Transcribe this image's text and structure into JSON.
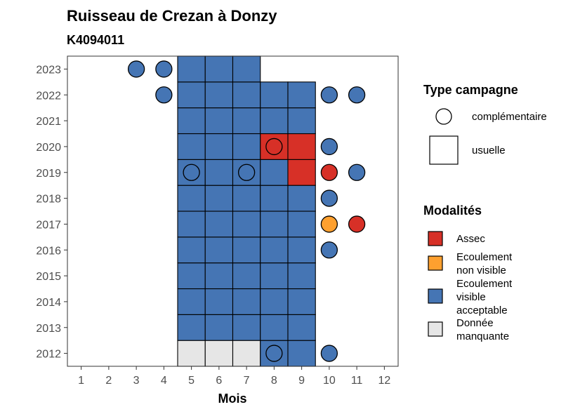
{
  "chart_data": {
    "type": "heatmap",
    "title": "Ruisseau de Crezan à Donzy",
    "subtitle": "K4094011",
    "xlabel": "Mois",
    "ylabel": "",
    "x_ticks": [
      1,
      2,
      3,
      4,
      5,
      6,
      7,
      8,
      9,
      10,
      11,
      12
    ],
    "y_ticks": [
      2012,
      2013,
      2014,
      2015,
      2016,
      2017,
      2018,
      2019,
      2020,
      2021,
      2022,
      2023
    ],
    "xlim": [
      0.5,
      12.5
    ],
    "ylim": [
      2011.5,
      2023.5
    ],
    "grid": false,
    "legend_position": "right",
    "colors": {
      "Assec": "#D73027",
      "Ecoulement non visible": "#FEA02F",
      "Ecoulement visible acceptable": "#4575B4",
      "Donnée manquante": "#E6E6E6"
    },
    "usuelle": [
      {
        "year": 2012,
        "month": 5,
        "modalite": "Donnée manquante"
      },
      {
        "year": 2012,
        "month": 6,
        "modalite": "Donnée manquante"
      },
      {
        "year": 2012,
        "month": 7,
        "modalite": "Donnée manquante"
      },
      {
        "year": 2012,
        "month": 8,
        "modalite": "Ecoulement visible acceptable"
      },
      {
        "year": 2012,
        "month": 9,
        "modalite": "Ecoulement visible acceptable"
      },
      {
        "year": 2013,
        "month": 5,
        "modalite": "Ecoulement visible acceptable"
      },
      {
        "year": 2013,
        "month": 6,
        "modalite": "Ecoulement visible acceptable"
      },
      {
        "year": 2013,
        "month": 7,
        "modalite": "Ecoulement visible acceptable"
      },
      {
        "year": 2013,
        "month": 8,
        "modalite": "Ecoulement visible acceptable"
      },
      {
        "year": 2013,
        "month": 9,
        "modalite": "Ecoulement visible acceptable"
      },
      {
        "year": 2014,
        "month": 5,
        "modalite": "Ecoulement visible acceptable"
      },
      {
        "year": 2014,
        "month": 6,
        "modalite": "Ecoulement visible acceptable"
      },
      {
        "year": 2014,
        "month": 7,
        "modalite": "Ecoulement visible acceptable"
      },
      {
        "year": 2014,
        "month": 8,
        "modalite": "Ecoulement visible acceptable"
      },
      {
        "year": 2014,
        "month": 9,
        "modalite": "Ecoulement visible acceptable"
      },
      {
        "year": 2015,
        "month": 5,
        "modalite": "Ecoulement visible acceptable"
      },
      {
        "year": 2015,
        "month": 6,
        "modalite": "Ecoulement visible acceptable"
      },
      {
        "year": 2015,
        "month": 7,
        "modalite": "Ecoulement visible acceptable"
      },
      {
        "year": 2015,
        "month": 8,
        "modalite": "Ecoulement visible acceptable"
      },
      {
        "year": 2015,
        "month": 9,
        "modalite": "Ecoulement visible acceptable"
      },
      {
        "year": 2016,
        "month": 5,
        "modalite": "Ecoulement visible acceptable"
      },
      {
        "year": 2016,
        "month": 6,
        "modalite": "Ecoulement visible acceptable"
      },
      {
        "year": 2016,
        "month": 7,
        "modalite": "Ecoulement visible acceptable"
      },
      {
        "year": 2016,
        "month": 8,
        "modalite": "Ecoulement visible acceptable"
      },
      {
        "year": 2016,
        "month": 9,
        "modalite": "Ecoulement visible acceptable"
      },
      {
        "year": 2017,
        "month": 5,
        "modalite": "Ecoulement visible acceptable"
      },
      {
        "year": 2017,
        "month": 6,
        "modalite": "Ecoulement visible acceptable"
      },
      {
        "year": 2017,
        "month": 7,
        "modalite": "Ecoulement visible acceptable"
      },
      {
        "year": 2017,
        "month": 8,
        "modalite": "Ecoulement visible acceptable"
      },
      {
        "year": 2017,
        "month": 9,
        "modalite": "Ecoulement visible acceptable"
      },
      {
        "year": 2018,
        "month": 5,
        "modalite": "Ecoulement visible acceptable"
      },
      {
        "year": 2018,
        "month": 6,
        "modalite": "Ecoulement visible acceptable"
      },
      {
        "year": 2018,
        "month": 7,
        "modalite": "Ecoulement visible acceptable"
      },
      {
        "year": 2018,
        "month": 8,
        "modalite": "Ecoulement visible acceptable"
      },
      {
        "year": 2018,
        "month": 9,
        "modalite": "Ecoulement visible acceptable"
      },
      {
        "year": 2019,
        "month": 5,
        "modalite": "Ecoulement visible acceptable"
      },
      {
        "year": 2019,
        "month": 6,
        "modalite": "Ecoulement visible acceptable"
      },
      {
        "year": 2019,
        "month": 7,
        "modalite": "Ecoulement visible acceptable"
      },
      {
        "year": 2019,
        "month": 8,
        "modalite": "Ecoulement visible acceptable"
      },
      {
        "year": 2019,
        "month": 9,
        "modalite": "Assec"
      },
      {
        "year": 2020,
        "month": 5,
        "modalite": "Ecoulement visible acceptable"
      },
      {
        "year": 2020,
        "month": 6,
        "modalite": "Ecoulement visible acceptable"
      },
      {
        "year": 2020,
        "month": 7,
        "modalite": "Ecoulement visible acceptable"
      },
      {
        "year": 2020,
        "month": 8,
        "modalite": "Assec"
      },
      {
        "year": 2020,
        "month": 9,
        "modalite": "Assec"
      },
      {
        "year": 2021,
        "month": 5,
        "modalite": "Ecoulement visible acceptable"
      },
      {
        "year": 2021,
        "month": 6,
        "modalite": "Ecoulement visible acceptable"
      },
      {
        "year": 2021,
        "month": 7,
        "modalite": "Ecoulement visible acceptable"
      },
      {
        "year": 2021,
        "month": 8,
        "modalite": "Ecoulement visible acceptable"
      },
      {
        "year": 2021,
        "month": 9,
        "modalite": "Ecoulement visible acceptable"
      },
      {
        "year": 2022,
        "month": 5,
        "modalite": "Ecoulement visible acceptable"
      },
      {
        "year": 2022,
        "month": 6,
        "modalite": "Ecoulement visible acceptable"
      },
      {
        "year": 2022,
        "month": 7,
        "modalite": "Ecoulement visible acceptable"
      },
      {
        "year": 2022,
        "month": 8,
        "modalite": "Ecoulement visible acceptable"
      },
      {
        "year": 2022,
        "month": 9,
        "modalite": "Ecoulement visible acceptable"
      },
      {
        "year": 2023,
        "month": 5,
        "modalite": "Ecoulement visible acceptable"
      },
      {
        "year": 2023,
        "month": 6,
        "modalite": "Ecoulement visible acceptable"
      },
      {
        "year": 2023,
        "month": 7,
        "modalite": "Ecoulement visible acceptable"
      }
    ],
    "complementaire": [
      {
        "year": 2012,
        "month": 8,
        "modalite": "Ecoulement visible acceptable"
      },
      {
        "year": 2012,
        "month": 10,
        "modalite": "Ecoulement visible acceptable"
      },
      {
        "year": 2016,
        "month": 10,
        "modalite": "Ecoulement visible acceptable"
      },
      {
        "year": 2017,
        "month": 10,
        "modalite": "Ecoulement non visible"
      },
      {
        "year": 2017,
        "month": 11,
        "modalite": "Assec"
      },
      {
        "year": 2018,
        "month": 10,
        "modalite": "Ecoulement visible acceptable"
      },
      {
        "year": 2019,
        "month": 5,
        "modalite": "Ecoulement visible acceptable"
      },
      {
        "year": 2019,
        "month": 7,
        "modalite": "Ecoulement visible acceptable"
      },
      {
        "year": 2019,
        "month": 10,
        "modalite": "Assec"
      },
      {
        "year": 2019,
        "month": 11,
        "modalite": "Ecoulement visible acceptable"
      },
      {
        "year": 2020,
        "month": 8,
        "modalite": "Assec"
      },
      {
        "year": 2020,
        "month": 10,
        "modalite": "Ecoulement visible acceptable"
      },
      {
        "year": 2022,
        "month": 4,
        "modalite": "Ecoulement visible acceptable"
      },
      {
        "year": 2022,
        "month": 10,
        "modalite": "Ecoulement visible acceptable"
      },
      {
        "year": 2022,
        "month": 11,
        "modalite": "Ecoulement visible acceptable"
      },
      {
        "year": 2023,
        "month": 3,
        "modalite": "Ecoulement visible acceptable"
      },
      {
        "year": 2023,
        "month": 4,
        "modalite": "Ecoulement visible acceptable"
      }
    ],
    "legend": {
      "type_title": "Type campagne",
      "type_items": [
        {
          "label": "complémentaire",
          "shape": "circle"
        },
        {
          "label": "usuelle",
          "shape": "square"
        }
      ],
      "modalites_title": "Modalités",
      "modalites_items": [
        {
          "lines": [
            "Assec"
          ],
          "key": "Assec"
        },
        {
          "lines": [
            "Ecoulement",
            "non visible"
          ],
          "key": "Ecoulement non visible"
        },
        {
          "lines": [
            "Ecoulement",
            "visible",
            "acceptable"
          ],
          "key": "Ecoulement visible acceptable"
        },
        {
          "lines": [
            "Donnée",
            "manquante"
          ],
          "key": "Donnée manquante"
        }
      ]
    }
  }
}
